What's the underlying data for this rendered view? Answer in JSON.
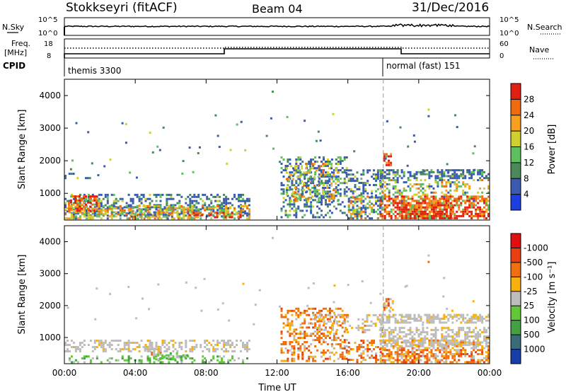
{
  "header": {
    "title": "Stokkseyri (fitACF)",
    "beam": "Beam 04",
    "date": "31/Dec/2016"
  },
  "nsky_panel": {
    "left_label": "N.Sky",
    "left_ticks": [
      "10^5",
      "10^0"
    ],
    "right_label": "N.Search",
    "right_ticks": [
      "10^5",
      "10^0"
    ]
  },
  "freq_panel": {
    "left_label_1": "Freq.",
    "left_label_2": "[MHz]",
    "left_ticks": [
      "18",
      "8"
    ],
    "right_label": "Nave",
    "right_ticks": [
      "60",
      "0"
    ],
    "cpid_label": "CPID",
    "cpid_entries": [
      {
        "text": "themis 3300",
        "start_hour": 0
      },
      {
        "text": "normal (fast) 151",
        "start_hour": 18
      }
    ]
  },
  "chart_data": [
    {
      "type": "heatmap",
      "name": "power",
      "ylabel": "Slant Range [km]",
      "xlabel": "",
      "xlim_hours": [
        0,
        24
      ],
      "ylim": [
        180,
        4500
      ],
      "yticks": [
        "1000",
        "2000",
        "3000",
        "4000"
      ],
      "xticks": [],
      "colorbar_label": "Power [dB]",
      "colorbar_ticks": [
        "4",
        "8",
        "12",
        "16",
        "20",
        "24",
        "28"
      ],
      "colorbar_colors": [
        "#1d3fe0",
        "#3a5bb0",
        "#4a8a5a",
        "#5fbf5f",
        "#cfd030",
        "#f7a020",
        "#f06a10",
        "#e02010"
      ],
      "mode_change_hour": 18
    },
    {
      "type": "heatmap",
      "name": "velocity",
      "ylabel": "Slant Range [km]",
      "xlabel": "Time UT",
      "xlim_hours": [
        0,
        24
      ],
      "ylim": [
        180,
        4500
      ],
      "yticks": [
        "1000",
        "2000",
        "3000",
        "4000"
      ],
      "xticks": [
        "00:00",
        "04:00",
        "08:00",
        "12:00",
        "16:00",
        "20:00",
        "00:00"
      ],
      "colorbar_label": "Velocity [m s⁻¹]",
      "colorbar_ticks": [
        "1000",
        "500",
        "100",
        "25",
        "-25",
        "-100",
        "-500",
        "-1000"
      ],
      "colorbar_colors": [
        "#1a3ea8",
        "#3a6b78",
        "#43a043",
        "#63c73a",
        "#bdbdbd",
        "#f6b010",
        "#f07010",
        "#e84010",
        "#e01010"
      ],
      "mode_change_hour": 18
    }
  ]
}
